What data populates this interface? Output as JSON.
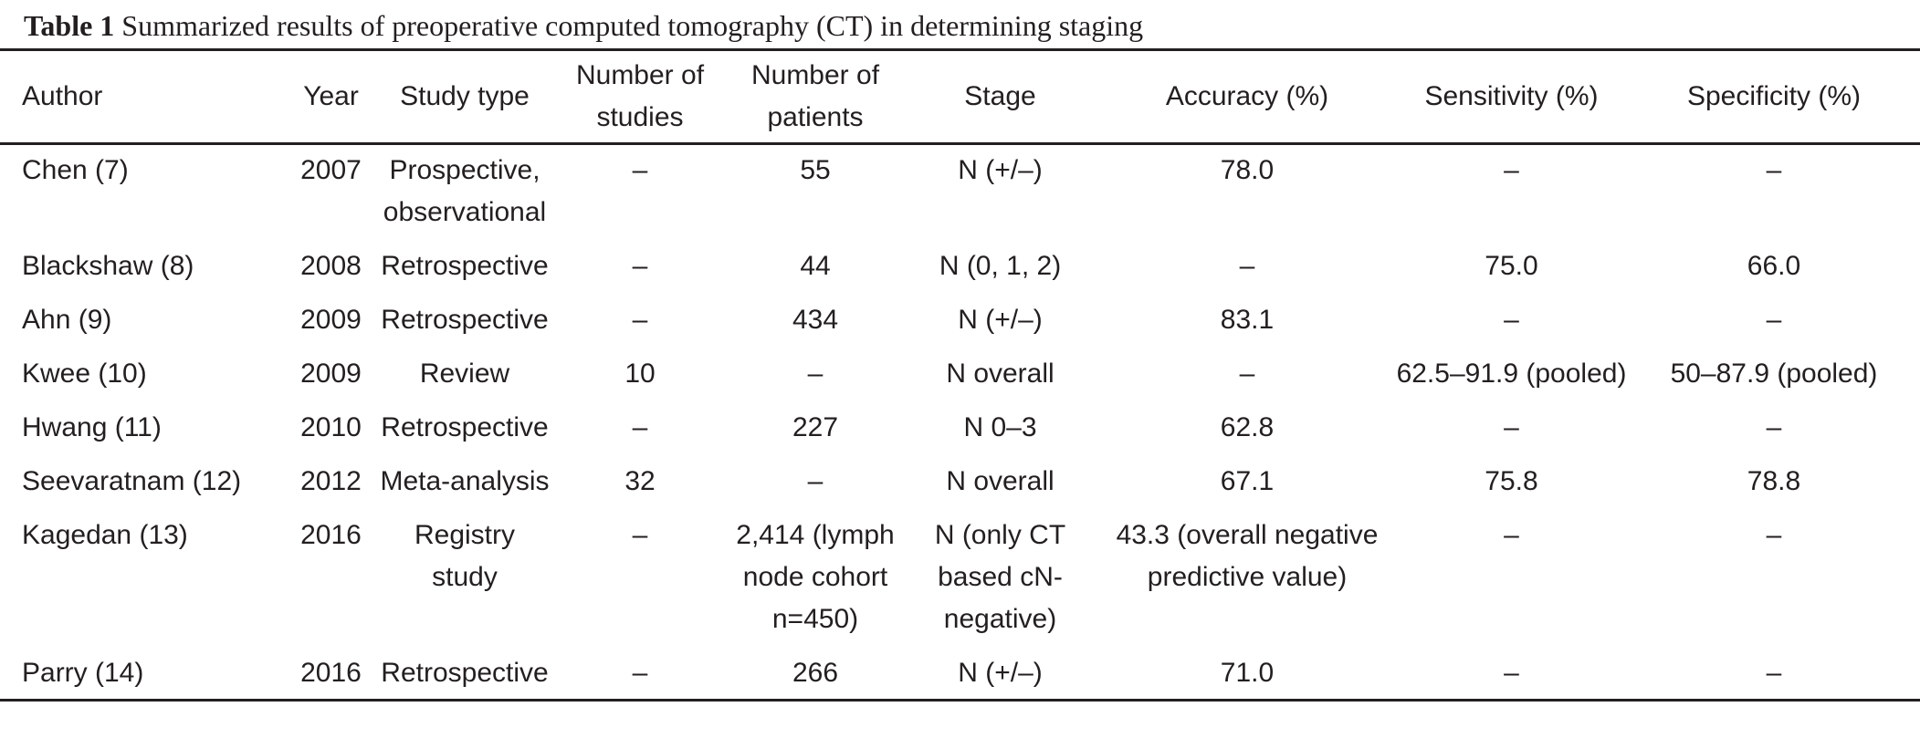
{
  "caption": {
    "label": "Table 1",
    "text": "Summarized results of preoperative computed tomography (CT) in determining staging"
  },
  "table": {
    "headers": [
      "Author",
      "Year",
      "Study type",
      "Number of studies",
      "Number of patients",
      "Stage",
      "Accuracy (%)",
      "Sensitivity (%)",
      "Specificity (%)"
    ],
    "rows": [
      [
        "Chen (7)",
        "2007",
        "Prospective, observational",
        "–",
        "55",
        "N (+/–)",
        "78.0",
        "–",
        "–"
      ],
      [
        "Blackshaw (8)",
        "2008",
        "Retrospective",
        "–",
        "44",
        "N (0, 1, 2)",
        "–",
        "75.0",
        "66.0"
      ],
      [
        "Ahn (9)",
        "2009",
        "Retrospective",
        "–",
        "434",
        "N (+/–)",
        "83.1",
        "–",
        "–"
      ],
      [
        "Kwee (10)",
        "2009",
        "Review",
        "10",
        "–",
        "N overall",
        "–",
        "62.5–91.9 (pooled)",
        "50–87.9 (pooled)"
      ],
      [
        "Hwang (11)",
        "2010",
        "Retrospective",
        "–",
        "227",
        "N 0–3",
        "62.8",
        "–",
        "–"
      ],
      [
        "Seevaratnam (12)",
        "2012",
        "Meta-analysis",
        "32",
        "–",
        "N overall",
        "67.1",
        "75.8",
        "78.8"
      ],
      [
        "Kagedan (13)",
        "2016",
        "Registry study",
        "–",
        "2,414 (lymph node cohort n=450)",
        "N (only CT based cN-negative)",
        "43.3 (overall negative predictive value)",
        "–",
        "–"
      ],
      [
        "Parry (14)",
        "2016",
        "Retrospective",
        "–",
        "266",
        "N (+/–)",
        "71.0",
        "–",
        "–"
      ]
    ]
  }
}
